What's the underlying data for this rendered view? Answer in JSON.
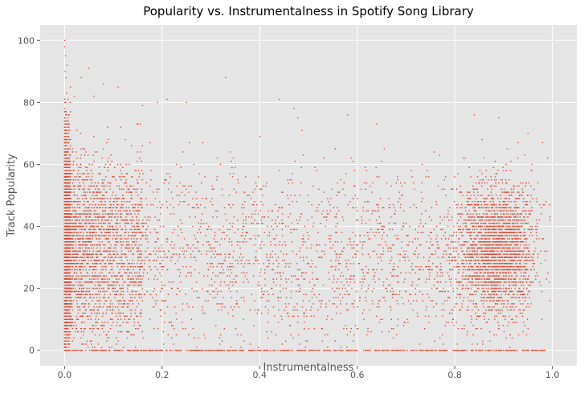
{
  "chart_data": {
    "type": "scatter",
    "title": "Popularity vs. Instrumentalness in Spotify Song Library",
    "xlabel": "Instrumentalness",
    "ylabel": "Track Popularity",
    "xlim": [
      -0.05,
      1.05
    ],
    "ylim": [
      -5,
      105
    ],
    "xticks": [
      0.0,
      0.2,
      0.4,
      0.6,
      0.8,
      1.0
    ],
    "xtick_labels": [
      "0.0",
      "0.2",
      "0.4",
      "0.6",
      "0.8",
      "1.0"
    ],
    "yticks": [
      0,
      20,
      40,
      60,
      80,
      100
    ],
    "ytick_labels": [
      "0",
      "20",
      "40",
      "60",
      "80",
      "100"
    ],
    "grid": true,
    "style": "ggplot",
    "point_color": "#E24A33",
    "background_color": "#E5E5E5",
    "series": [
      {
        "description": "approx. 30,000 songs; dense column at instrumentalness ~0 spanning popularity 0-100, broad spread 0-70 across 0-0.9, secondary dense cluster near 0.85-0.95 at popularity 20-55, many points at popularity 0 across full x range",
        "points": [
          [
            0.0,
            100
          ],
          [
            0.0,
            98
          ],
          [
            0.002,
            95
          ],
          [
            0.005,
            92
          ],
          [
            0.001,
            90
          ],
          [
            0.003,
            88
          ],
          [
            0.012,
            85
          ],
          [
            0.004,
            83
          ],
          [
            0.02,
            82
          ],
          [
            0.05,
            91
          ],
          [
            0.034,
            88
          ],
          [
            0.33,
            88
          ],
          [
            0.44,
            81
          ],
          [
            0.47,
            78
          ],
          [
            0.16,
            79
          ],
          [
            0.19,
            80
          ],
          [
            0.21,
            81
          ],
          [
            0.25,
            80
          ],
          [
            0.58,
            76
          ],
          [
            0.84,
            76
          ],
          [
            0.89,
            75
          ],
          [
            0.95,
            70
          ],
          [
            0.98,
            67
          ],
          [
            0.99,
            62
          ],
          [
            0.93,
            67
          ],
          [
            0.11,
            85
          ],
          [
            0.08,
            86
          ],
          [
            0.06,
            82
          ]
        ]
      }
    ]
  }
}
